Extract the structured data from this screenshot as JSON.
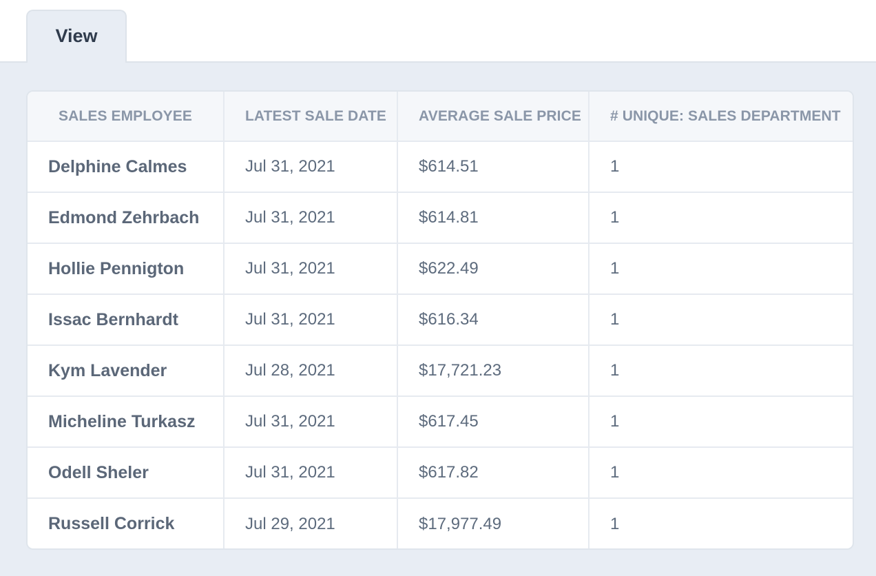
{
  "tabs": {
    "active_label": "View"
  },
  "table": {
    "columns": [
      "SALES EMPLOYEE",
      "LATEST SALE DATE",
      "AVERAGE SALE PRICE",
      "# UNIQUE: SALES DEPARTMENT"
    ],
    "rows": [
      [
        "Delphine Calmes",
        "Jul 31, 2021",
        "$614.51",
        "1"
      ],
      [
        "Edmond Zehrbach",
        "Jul 31, 2021",
        "$614.81",
        "1"
      ],
      [
        "Hollie Pennigton",
        "Jul 31, 2021",
        "$622.49",
        "1"
      ],
      [
        "Issac Bernhardt",
        "Jul 31, 2021",
        "$616.34",
        "1"
      ],
      [
        "Kym Lavender",
        "Jul 28, 2021",
        "$17,721.23",
        "1"
      ],
      [
        "Micheline Turkasz",
        "Jul 31, 2021",
        "$617.45",
        "1"
      ],
      [
        "Odell Sheler",
        "Jul 31, 2021",
        "$617.82",
        "1"
      ],
      [
        "Russell Corrick",
        "Jul 29, 2021",
        "$17,977.49",
        "1"
      ]
    ]
  },
  "colors": {
    "header_text": "#8a96a8",
    "name_text": "#5b6778",
    "cell_text": "#5d6b7d",
    "page_background": "#e8edf4",
    "tab_text": "#2f3b4c"
  }
}
